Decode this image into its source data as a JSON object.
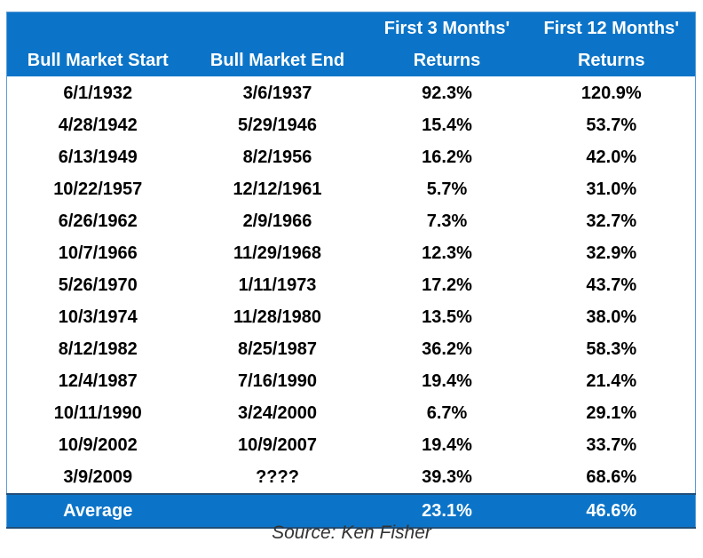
{
  "chart_data": {
    "type": "table",
    "columns": [
      {
        "line1": "",
        "line2": "Bull Market Start"
      },
      {
        "line1": "",
        "line2": "Bull Market End"
      },
      {
        "line1": "First 3 Months'",
        "line2": "Returns"
      },
      {
        "line1": "First 12 Months'",
        "line2": "Returns"
      }
    ],
    "rows": [
      [
        "6/1/1932",
        "3/6/1937",
        "92.3%",
        "120.9%"
      ],
      [
        "4/28/1942",
        "5/29/1946",
        "15.4%",
        "53.7%"
      ],
      [
        "6/13/1949",
        "8/2/1956",
        "16.2%",
        "42.0%"
      ],
      [
        "10/22/1957",
        "12/12/1961",
        "5.7%",
        "31.0%"
      ],
      [
        "6/26/1962",
        "2/9/1966",
        "7.3%",
        "32.7%"
      ],
      [
        "10/7/1966",
        "11/29/1968",
        "12.3%",
        "32.9%"
      ],
      [
        "5/26/1970",
        "1/11/1973",
        "17.2%",
        "43.7%"
      ],
      [
        "10/3/1974",
        "11/28/1980",
        "13.5%",
        "38.0%"
      ],
      [
        "8/12/1982",
        "8/25/1987",
        "36.2%",
        "58.3%"
      ],
      [
        "12/4/1987",
        "7/16/1990",
        "19.4%",
        "21.4%"
      ],
      [
        "10/11/1990",
        "3/24/2000",
        "6.7%",
        "29.1%"
      ],
      [
        "10/9/2002",
        "10/9/2007",
        "19.4%",
        "33.7%"
      ],
      [
        "3/9/2009",
        "????",
        "39.3%",
        "68.6%"
      ]
    ],
    "footer": [
      "Average",
      "",
      "23.1%",
      "46.6%"
    ],
    "source": "Source: Ken Fisher"
  },
  "colors": {
    "header_bg": "#0b74c8",
    "header_text": "#ffffff",
    "body_text": "#000000"
  }
}
